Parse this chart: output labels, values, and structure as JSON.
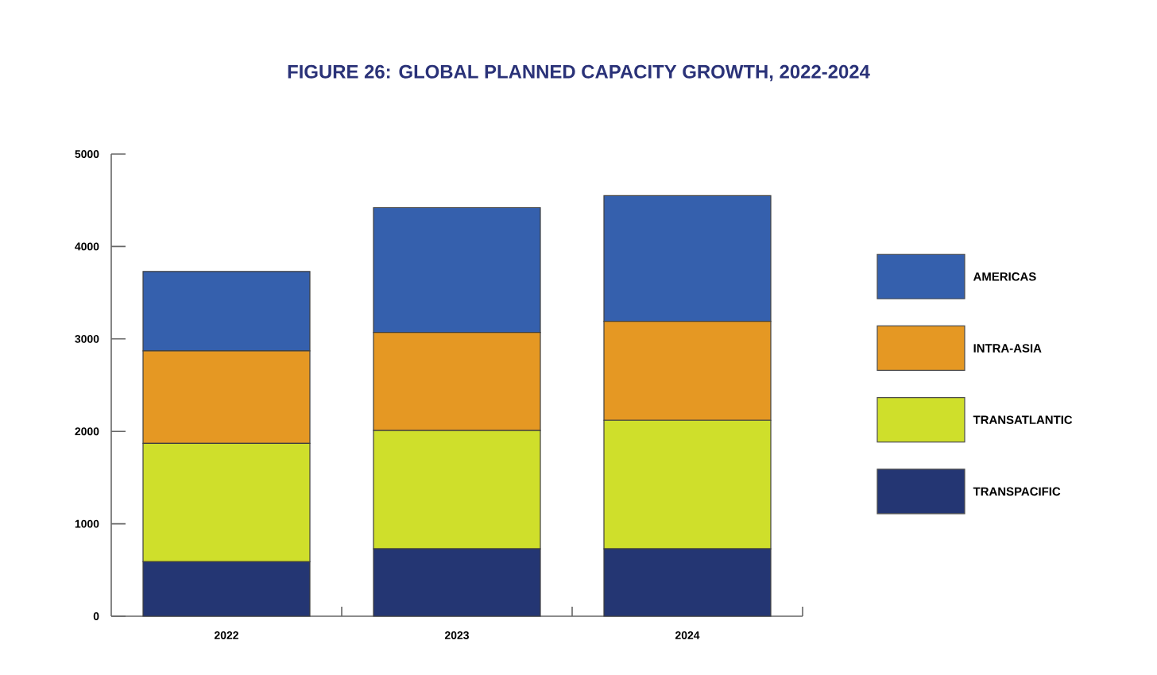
{
  "chart_data": {
    "type": "bar",
    "stacked": true,
    "title": "FIGURE 26: GLOBAL PLANNED CAPACITY GROWTH, 2022-2024",
    "categories": [
      "2022",
      "2023",
      "2024"
    ],
    "series": [
      {
        "name": "TRANSPACIFIC",
        "color": "#243673",
        "values": [
          590,
          730,
          730
        ]
      },
      {
        "name": "TRANSATLANTIC",
        "color": "#cfdf2b",
        "values": [
          1280,
          1280,
          1390
        ]
      },
      {
        "name": "INTRA-ASIA",
        "color": "#e59823",
        "values": [
          1000,
          1060,
          1070
        ]
      },
      {
        "name": "AMERICAS",
        "color": "#3560ad",
        "values": [
          860,
          1350,
          1360
        ]
      }
    ],
    "ylim": [
      0,
      5000
    ],
    "yticks": [
      0,
      1000,
      2000,
      3000,
      4000,
      5000
    ],
    "grid": false,
    "legend": "right"
  }
}
